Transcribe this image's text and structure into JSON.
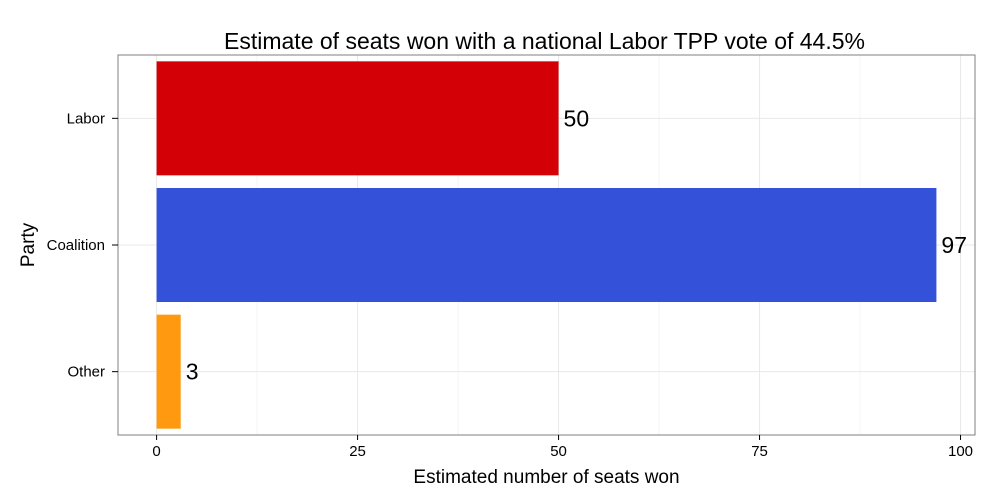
{
  "chart_data": {
    "type": "bar",
    "orientation": "horizontal",
    "title": "Estimate of seats won with a national Labor TPP vote of 44.5%",
    "xlabel": "Estimated number of seats won",
    "ylabel": "Party",
    "categories": [
      "Labor",
      "Coalition",
      "Other"
    ],
    "values": [
      50,
      97,
      3
    ],
    "data_labels": [
      "50",
      "97",
      "3"
    ],
    "colors": [
      "#d30005",
      "#3452d9",
      "#ff9910"
    ],
    "xlim": [
      -4.8,
      101.8
    ],
    "xticks": [
      0,
      25,
      50,
      75,
      100
    ],
    "xtick_labels": [
      "0",
      "25",
      "50",
      "75",
      "100"
    ],
    "grid": true,
    "legend": "none"
  }
}
